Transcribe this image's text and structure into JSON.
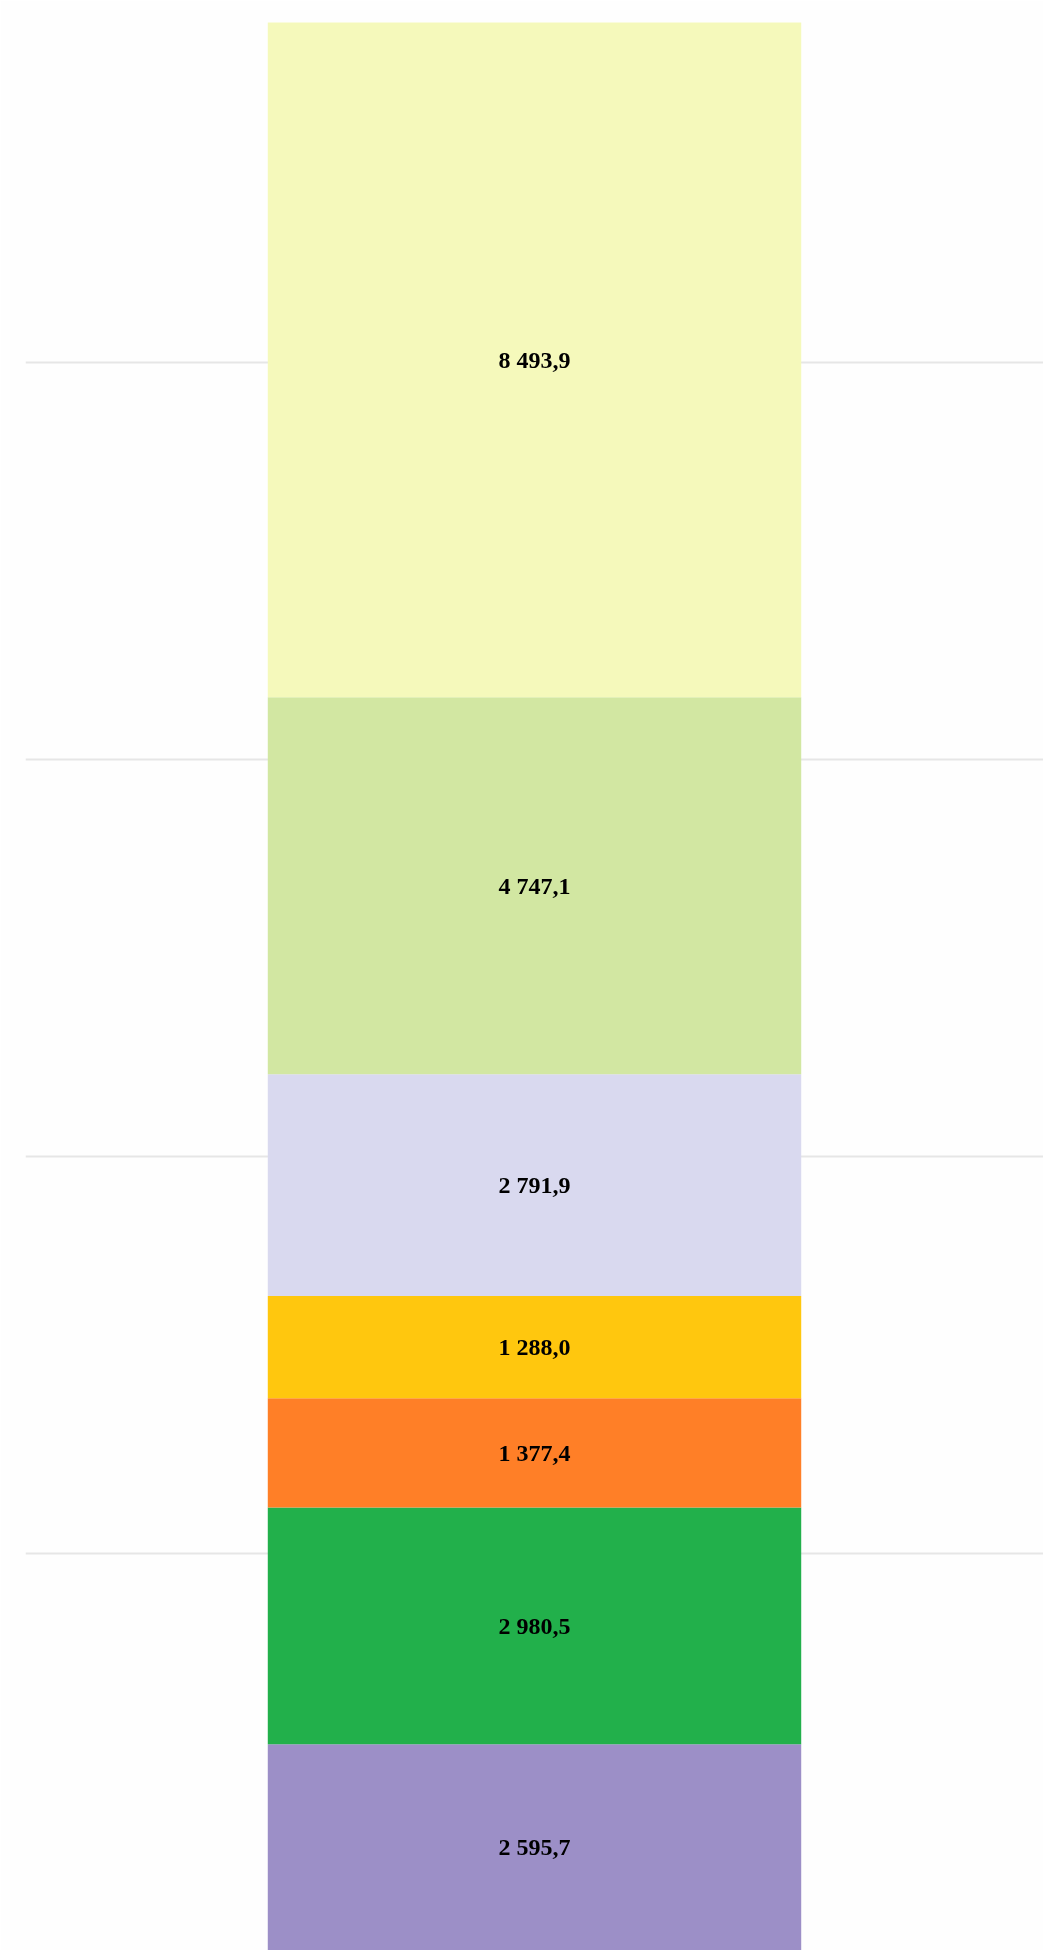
{
  "chart_data": {
    "type": "bar",
    "stacked": true,
    "categories": [
      null
    ],
    "series": [
      {
        "color": "#9c8fc7",
        "values": [
          2595.7
        ],
        "value_labels": [
          "2 595,7"
        ]
      },
      {
        "color": "#22b04b",
        "values": [
          2980.5
        ],
        "value_labels": [
          "2 980,5"
        ]
      },
      {
        "color": "#ff7f27",
        "values": [
          1377.4
        ],
        "value_labels": [
          "1 377,4"
        ]
      },
      {
        "color": "#ffc70e",
        "values": [
          1288.0
        ],
        "value_labels": [
          "1 288,0"
        ]
      },
      {
        "color": "#d9d9ef",
        "values": [
          2791.9
        ],
        "value_labels": [
          "2 791,9"
        ]
      },
      {
        "color": "#d2e7a2",
        "values": [
          4747.1
        ],
        "value_labels": [
          "4 747,1"
        ]
      },
      {
        "color": "#f5f9bb",
        "values": [
          8493.9
        ],
        "value_labels": [
          "8 493,9"
        ]
      }
    ],
    "ylim": [
      0,
      24300
    ],
    "yticks": [
      {
        "value": 5000,
        "label": null
      },
      {
        "value": 10000,
        "label": null
      },
      {
        "value": 15000,
        "label": null
      },
      {
        "value": 20000,
        "label": null
      }
    ],
    "grid": "y",
    "tick_labels": false
  }
}
